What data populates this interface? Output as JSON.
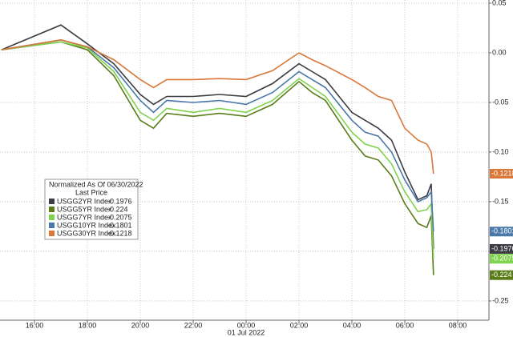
{
  "chart_data": {
    "type": "line",
    "legend_title": "Normalized As Of 06/30/2022",
    "legend_subtitle": "Last Price",
    "date_label": "01 Jul 2022",
    "x": [
      "14:45",
      "17:00",
      "18:00",
      "19:00",
      "20:00",
      "20:30",
      "21:00",
      "22:00",
      "23:00",
      "00:00",
      "01:00",
      "02:00",
      "02:30",
      "03:00",
      "04:00",
      "04:30",
      "05:00",
      "05:30",
      "06:00",
      "06:30",
      "06:50",
      "07:00",
      "07:05"
    ],
    "xticks": [
      "16:00",
      "18:00",
      "20:00",
      "22:00",
      "00:00",
      "02:00",
      "04:00",
      "06:00",
      "08:00"
    ],
    "ylim": [
      -0.2694,
      0.0532
    ],
    "yticks": [
      0.05,
      {
        "value": 0,
        "label": "0.00"
      },
      -0.05,
      {
        "value": -0.1,
        "label": "-0.10"
      },
      -0.15,
      {
        "value": -0.2,
        "label": "-0.20"
      },
      -0.25
    ],
    "grid": true,
    "series": [
      {
        "name": "USGG2YR Index",
        "color": "#3c3c44",
        "values": [
          0.003,
          0.028,
          0.009,
          -0.011,
          -0.042,
          -0.052,
          -0.044,
          -0.044,
          -0.042,
          -0.044,
          -0.031,
          -0.011,
          -0.019,
          -0.027,
          -0.06,
          -0.068,
          -0.076,
          -0.088,
          -0.12,
          -0.148,
          -0.144,
          -0.132,
          -0.1976
        ]
      },
      {
        "name": "USGG5YR Index",
        "color": "#5a7d1a",
        "values": [
          0.003,
          0.011,
          0.003,
          -0.023,
          -0.068,
          -0.076,
          -0.061,
          -0.064,
          -0.061,
          -0.064,
          -0.052,
          -0.029,
          -0.04,
          -0.048,
          -0.088,
          -0.104,
          -0.108,
          -0.124,
          -0.152,
          -0.172,
          -0.176,
          -0.164,
          -0.224
        ]
      },
      {
        "name": "USGG7YR Index",
        "color": "#7fd34e",
        "values": [
          0.003,
          0.011,
          0.005,
          -0.019,
          -0.06,
          -0.068,
          -0.056,
          -0.06,
          -0.056,
          -0.06,
          -0.048,
          -0.026,
          -0.035,
          -0.044,
          -0.08,
          -0.092,
          -0.096,
          -0.112,
          -0.14,
          -0.16,
          -0.158,
          -0.152,
          -0.2075
        ]
      },
      {
        "name": "USGG10YR Index",
        "color": "#4a78a8",
        "values": [
          0.003,
          0.013,
          0.006,
          -0.015,
          -0.048,
          -0.06,
          -0.048,
          -0.05,
          -0.048,
          -0.052,
          -0.04,
          -0.019,
          -0.027,
          -0.035,
          -0.068,
          -0.08,
          -0.084,
          -0.1,
          -0.128,
          -0.15,
          -0.146,
          -0.14,
          -0.1801
        ]
      },
      {
        "name": "USGG30YR Index",
        "color": "#d9783a",
        "values": [
          0.003,
          0.013,
          0.006,
          -0.007,
          -0.027,
          -0.035,
          -0.027,
          -0.027,
          -0.026,
          -0.027,
          -0.018,
          0.0,
          -0.007,
          -0.013,
          -0.027,
          -0.035,
          -0.044,
          -0.048,
          -0.076,
          -0.088,
          -0.092,
          -0.1,
          -0.1218
        ]
      }
    ]
  }
}
